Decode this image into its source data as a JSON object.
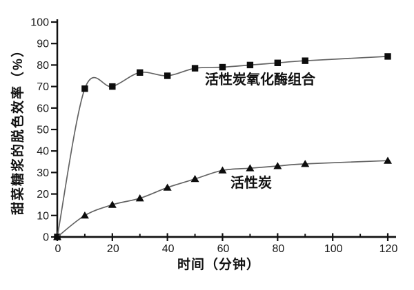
{
  "chart_data": {
    "type": "line",
    "title": "",
    "xlabel": "时间（分钟）",
    "ylabel": "甜菜糖浆的脱色效率（%）",
    "xlim": [
      0,
      124
    ],
    "ylim": [
      0,
      100
    ],
    "grid": false,
    "legend_position": "inline-annotations",
    "x_major_ticks": [
      0,
      20,
      40,
      60,
      80,
      100,
      120
    ],
    "x_minor_ticks": [
      10,
      30,
      50,
      70,
      90,
      110
    ],
    "y_major_ticks": [
      0,
      10,
      20,
      30,
      40,
      50,
      60,
      70,
      80,
      90,
      100
    ],
    "x": [
      0,
      10,
      20,
      30,
      40,
      50,
      60,
      70,
      80,
      90,
      120
    ],
    "series": [
      {
        "name": "活性炭氧化酶组合",
        "marker": "square",
        "values": [
          0,
          69,
          70,
          76.5,
          75,
          78.5,
          79,
          80,
          81,
          82,
          84
        ]
      },
      {
        "name": "活性炭",
        "marker": "triangle",
        "values": [
          0,
          10,
          15,
          18,
          23,
          27,
          31,
          32,
          33,
          34,
          35.5
        ]
      }
    ],
    "colors": {
      "line": "#636363",
      "marker": "#0d0d0d",
      "axis": "#111111",
      "text": "#1a1a1a"
    }
  }
}
